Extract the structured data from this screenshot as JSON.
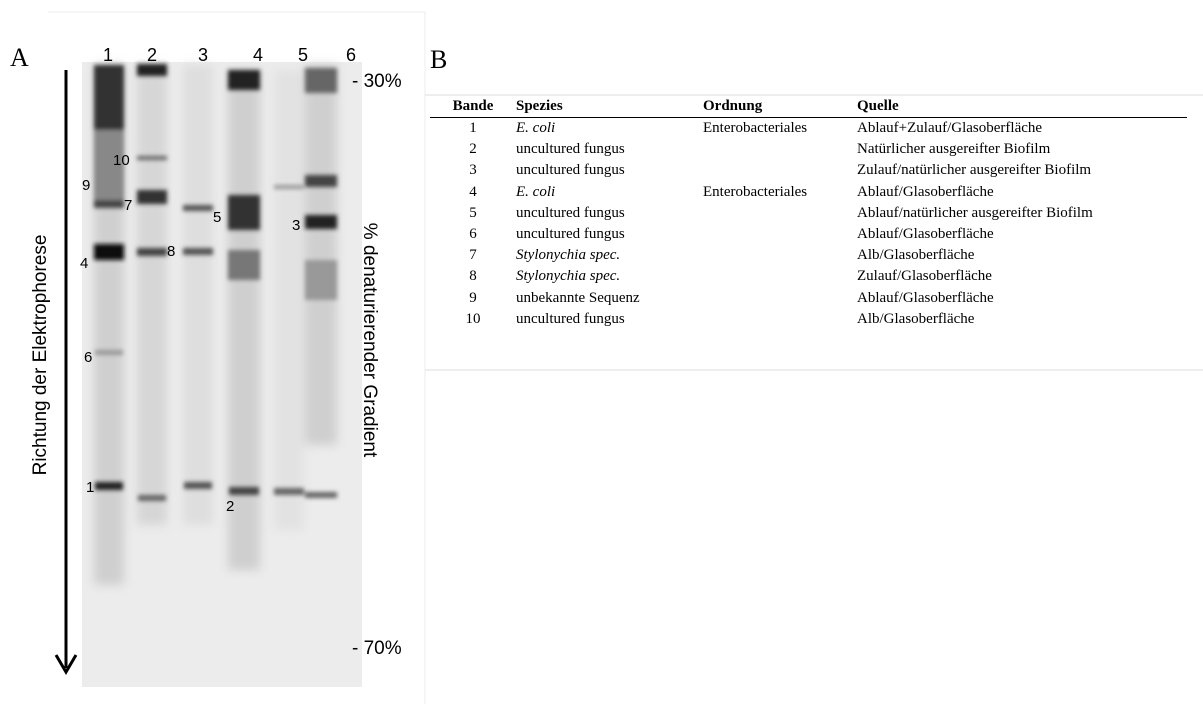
{
  "panel_a": {
    "label": "A",
    "lanes": [
      "1",
      "2",
      "3",
      "4",
      "5",
      "6"
    ],
    "gradient_top": "- 30%",
    "gradient_bottom": "- 70%",
    "direction_label": "Richtung der Elektrophorese",
    "gradient_label": "% denaturierender Gradient",
    "band_labels": [
      "10",
      "9",
      "7",
      "5",
      "3",
      "8",
      "4",
      "6",
      "1",
      "2"
    ]
  },
  "panel_b": {
    "label": "B",
    "table": {
      "header": [
        "Bande",
        "Spezies",
        "Ordnung",
        "Quelle"
      ],
      "rows": [
        [
          "1",
          "E. coli",
          "Enterobacteriales",
          "Ablauf+Zulauf/Glasoberfläche"
        ],
        [
          "2",
          "uncultured fungus",
          "",
          "Natürlicher ausgereifter Biofilm"
        ],
        [
          "3",
          "uncultured fungus",
          "",
          "Zulauf/natürlicher ausgereifter Biofilm"
        ],
        [
          "4",
          "E. coli",
          "Enterobacteriales",
          "Ablauf/Glasoberfläche"
        ],
        [
          "5",
          "uncultured fungus",
          "",
          "Ablauf/natürlicher ausgereifter Biofilm"
        ],
        [
          "6",
          "uncultured fungus",
          "",
          "Ablauf/Glasoberfläche"
        ],
        [
          "7",
          "Stylonychia spec.",
          "",
          "Alb/Glasoberfläche"
        ],
        [
          "8",
          "Stylonychia spec.",
          "",
          "Zulauf/Glasoberfläche"
        ],
        [
          "9",
          "unbekannte Sequenz",
          "",
          "Ablauf/Glasoberfläche"
        ],
        [
          "10",
          "uncultured fungus",
          "",
          "Alb/Glasoberfläche"
        ]
      ]
    }
  }
}
